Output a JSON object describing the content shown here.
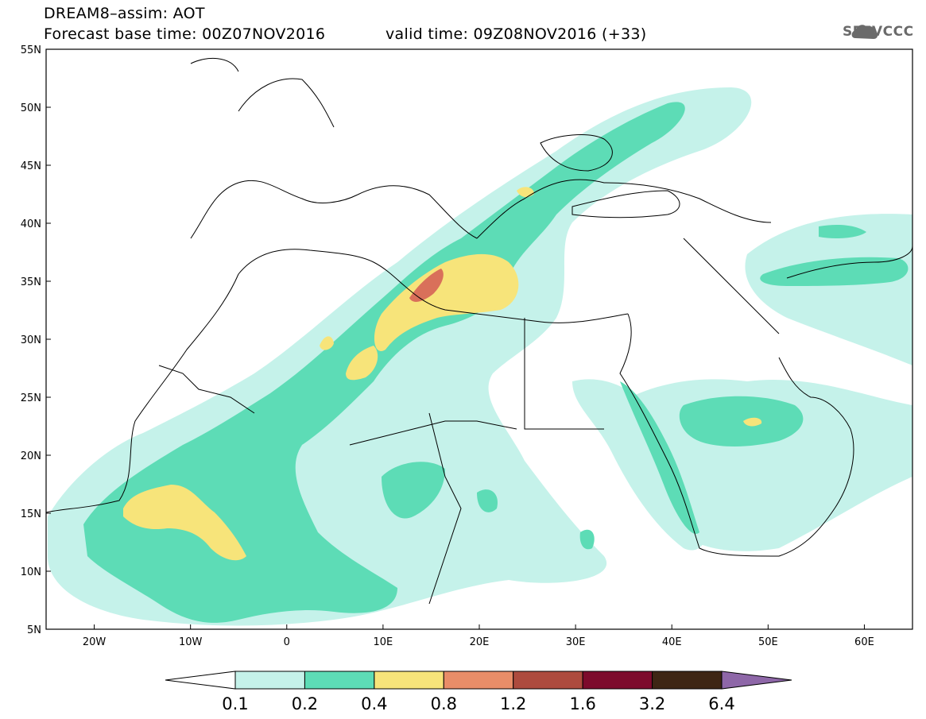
{
  "header": {
    "title": "DREAM8–assim: AOT",
    "base_time": "Forecast base time: 00Z07NOV2016",
    "valid_time": "valid time: 09Z08NOV2016 (+33)",
    "logo_text": "SEEVCCC",
    "logo_icon": "cloud-icon"
  },
  "map": {
    "lat_labels": [
      "55N",
      "50N",
      "45N",
      "40N",
      "35N",
      "30N",
      "25N",
      "20N",
      "15N",
      "10N",
      "5N"
    ],
    "lon_labels": [
      "20W",
      "10W",
      "0",
      "10E",
      "20E",
      "30E",
      "40E",
      "50E",
      "60E"
    ],
    "lon_range": [
      -25,
      65
    ],
    "lat_range": [
      5,
      55
    ]
  },
  "colorbar": {
    "labels": [
      "0.1",
      "0.2",
      "0.4",
      "0.8",
      "1.2",
      "1.6",
      "3.2",
      "6.4"
    ],
    "colors": [
      "#ffffff",
      "#c5f2ea",
      "#5ddcb6",
      "#f7e47a",
      "#e88d68",
      "#ad4b3e",
      "#7d0b2c",
      "#3e2614",
      "#8e67a8"
    ]
  }
}
